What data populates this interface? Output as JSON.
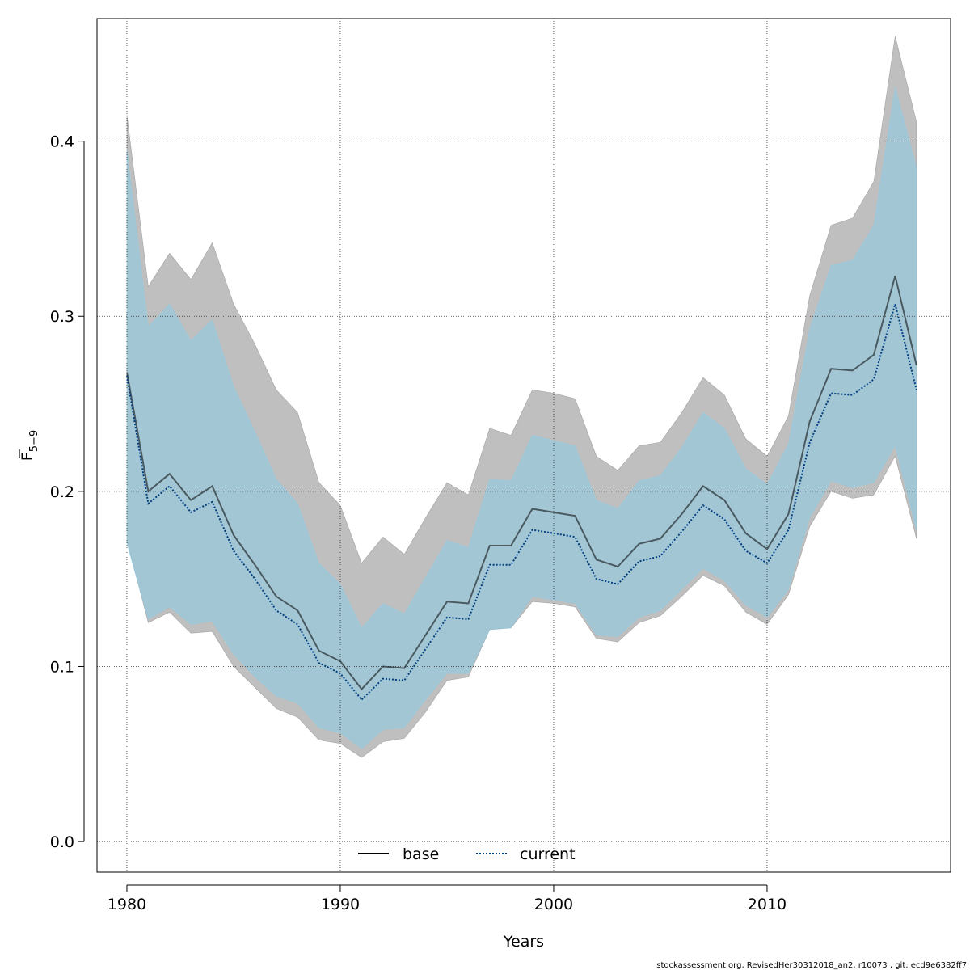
{
  "chart_data": {
    "type": "line",
    "xlabel": "Years",
    "ylabel": "F",
    "ylabel_sub": "5−9",
    "xlim": [
      1978.6,
      2018.6
    ],
    "ylim": [
      -0.0175,
      0.47
    ],
    "xticks": [
      1980,
      1990,
      2000,
      2010
    ],
    "yticks": [
      0.0,
      0.1,
      0.2,
      0.3,
      0.4
    ],
    "grid": true,
    "legend_position": "bottom",
    "x": [
      1980,
      1981,
      1982,
      1983,
      1984,
      1985,
      1986,
      1987,
      1988,
      1989,
      1990,
      1991,
      1992,
      1993,
      1994,
      1995,
      1996,
      1997,
      1998,
      1999,
      2000,
      2001,
      2002,
      2003,
      2004,
      2005,
      2006,
      2007,
      2008,
      2009,
      2010,
      2011,
      2012,
      2013,
      2014,
      2015,
      2016,
      2017
    ],
    "series": [
      {
        "name": "base",
        "color": "#000000",
        "band_color": "#808080",
        "line_style": "solid",
        "values": [
          0.268,
          0.2,
          0.21,
          0.195,
          0.203,
          0.175,
          0.158,
          0.14,
          0.132,
          0.109,
          0.103,
          0.087,
          0.1,
          0.099,
          0.118,
          0.137,
          0.136,
          0.169,
          0.169,
          0.19,
          0.188,
          0.186,
          0.161,
          0.157,
          0.17,
          0.173,
          0.187,
          0.203,
          0.195,
          0.176,
          0.167,
          0.187,
          0.24,
          0.27,
          0.269,
          0.278,
          0.323,
          0.272
        ],
        "lower": [
          0.172,
          0.125,
          0.131,
          0.119,
          0.12,
          0.1,
          0.088,
          0.076,
          0.071,
          0.058,
          0.056,
          0.048,
          0.057,
          0.059,
          0.074,
          0.092,
          0.094,
          0.121,
          0.122,
          0.137,
          0.136,
          0.134,
          0.116,
          0.114,
          0.125,
          0.129,
          0.14,
          0.152,
          0.146,
          0.131,
          0.124,
          0.141,
          0.18,
          0.2,
          0.196,
          0.198,
          0.22,
          0.173
        ],
        "upper": [
          0.415,
          0.317,
          0.336,
          0.321,
          0.342,
          0.307,
          0.284,
          0.258,
          0.245,
          0.205,
          0.192,
          0.159,
          0.174,
          0.164,
          0.185,
          0.205,
          0.198,
          0.236,
          0.232,
          0.258,
          0.256,
          0.253,
          0.22,
          0.212,
          0.226,
          0.228,
          0.245,
          0.265,
          0.255,
          0.23,
          0.22,
          0.243,
          0.312,
          0.352,
          0.356,
          0.377,
          0.46,
          0.411
        ]
      },
      {
        "name": "current",
        "color": "#003f7f",
        "band_color": "#87ceeb",
        "line_style": "dotted",
        "values": [
          0.266,
          0.193,
          0.203,
          0.188,
          0.194,
          0.166,
          0.15,
          0.132,
          0.124,
          0.102,
          0.096,
          0.081,
          0.093,
          0.092,
          0.11,
          0.128,
          0.127,
          0.158,
          0.158,
          0.178,
          0.176,
          0.174,
          0.15,
          0.147,
          0.16,
          0.163,
          0.177,
          0.192,
          0.184,
          0.166,
          0.159,
          0.178,
          0.228,
          0.256,
          0.255,
          0.264,
          0.307,
          0.258
        ],
        "lower": [
          0.17,
          0.127,
          0.134,
          0.124,
          0.126,
          0.107,
          0.094,
          0.083,
          0.079,
          0.065,
          0.062,
          0.053,
          0.064,
          0.065,
          0.081,
          0.096,
          0.096,
          0.121,
          0.122,
          0.14,
          0.138,
          0.136,
          0.118,
          0.117,
          0.128,
          0.132,
          0.144,
          0.156,
          0.149,
          0.135,
          0.128,
          0.144,
          0.185,
          0.206,
          0.202,
          0.205,
          0.226,
          0.178
        ],
        "upper": [
          0.395,
          0.294,
          0.307,
          0.286,
          0.298,
          0.26,
          0.234,
          0.207,
          0.193,
          0.159,
          0.147,
          0.122,
          0.136,
          0.13,
          0.151,
          0.172,
          0.168,
          0.207,
          0.206,
          0.232,
          0.229,
          0.226,
          0.195,
          0.19,
          0.206,
          0.209,
          0.225,
          0.245,
          0.236,
          0.213,
          0.204,
          0.227,
          0.293,
          0.329,
          0.332,
          0.352,
          0.431,
          0.385
        ]
      }
    ]
  },
  "footer_text": "stockassessment.org, RevisedHer30312018_an2, r10073 , git: ecd9e6382ff7"
}
